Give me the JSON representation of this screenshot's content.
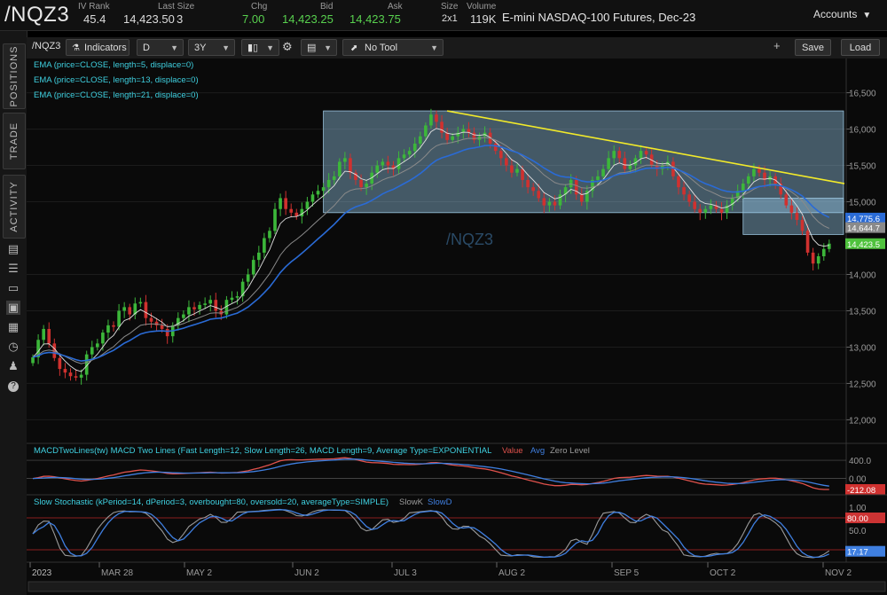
{
  "quote": {
    "symbol": "/NQZ3",
    "iv_rank_label": "IV Rank",
    "iv_rank": "45.4",
    "last_size_label": "Last Size",
    "last": "14,423.50",
    "size_inline": "3",
    "chg_label": "Chg",
    "chg": "7.00",
    "bid_label": "Bid",
    "bid": "14,423.25",
    "ask_label": "Ask",
    "ask": "14,423.75",
    "size_label": "Size",
    "size": "2x1",
    "volume_label": "Volume",
    "volume": "119K",
    "description": "E-mini NASDAQ-100 Futures, Dec-23",
    "accounts": "Accounts",
    "colors": {
      "up": "#58d04e"
    }
  },
  "sidebar": {
    "tabs": [
      "POSITIONS",
      "TRADE",
      "ACTIVITY"
    ],
    "icons": [
      "document-icon",
      "list-icon",
      "tv-icon",
      "chart-icon",
      "grid-icon",
      "history-icon",
      "people-icon",
      "help-icon"
    ]
  },
  "toolbar": {
    "symbol": "/NQZ3",
    "indicators": "Indicators",
    "aggregation": "D",
    "range": "3Y",
    "tool": "No Tool",
    "save": "Save",
    "load": "Load"
  },
  "chart_data": [
    {
      "type": "candlestick",
      "watermark": "/NQZ3",
      "studies": [
        "EMA (price=CLOSE, length=5, displace=0)",
        "EMA (price=CLOSE, length=13, displace=0)",
        "EMA (price=CLOSE, length=21, displace=0)"
      ],
      "y_ticks": [
        "16,500",
        "16,000",
        "15,500",
        "15,000",
        "14,000",
        "13,500",
        "13,000",
        "12,500",
        "12,000"
      ],
      "ylim": [
        11700,
        16800
      ],
      "price_tags": [
        {
          "text": "14,775.6",
          "value": 14775.6,
          "color": "#2a6bd6"
        },
        {
          "text": "14,644.7",
          "value": 14644.7,
          "color": "#8a8a8a"
        },
        {
          "text": "14,423.5",
          "value": 14423.5,
          "color": "#4fc23d"
        }
      ],
      "x_ticks": [
        "2023",
        "MAR 28",
        "MAY 2",
        "JUN 2",
        "JUL 3",
        "AUG 2",
        "SEP 5",
        "OCT 2",
        "NOV 2"
      ],
      "closes": [
        12860,
        13100,
        13250,
        13050,
        12850,
        12700,
        12650,
        12600,
        12580,
        12620,
        12900,
        13000,
        13050,
        13200,
        13300,
        13280,
        13500,
        13550,
        13450,
        13600,
        13620,
        13400,
        13350,
        13300,
        13250,
        13150,
        13300,
        13400,
        13450,
        13550,
        13520,
        13580,
        13600,
        13650,
        13500,
        13450,
        13650,
        13680,
        13700,
        13900,
        14000,
        14200,
        14300,
        14500,
        14600,
        14900,
        15050,
        14900,
        14850,
        14800,
        14900,
        15000,
        15100,
        15150,
        15200,
        15300,
        15350,
        15550,
        15600,
        15400,
        15300,
        15200,
        15250,
        15400,
        15500,
        15550,
        15500,
        15450,
        15600,
        15650,
        15700,
        15800,
        15900,
        16050,
        16200,
        16100,
        15950,
        15850,
        15900,
        15950,
        16000,
        15950,
        15850,
        15900,
        15950,
        15800,
        15700,
        15600,
        15500,
        15400,
        15450,
        15300,
        15200,
        15150,
        15050,
        14950,
        15000,
        14950,
        15100,
        15200,
        15300,
        15100,
        15000,
        15150,
        15300,
        15350,
        15450,
        15600,
        15700,
        15600,
        15450,
        15500,
        15600,
        15700,
        15650,
        15500,
        15450,
        15500,
        15550,
        15350,
        15200,
        15100,
        15000,
        14900,
        14850,
        14900,
        14950,
        14900,
        14850,
        14950,
        15050,
        15150,
        15250,
        15350,
        15450,
        15400,
        15300,
        15350,
        15250,
        15100,
        14950,
        14850,
        14750,
        14600,
        14300,
        14150,
        14250,
        14350,
        14423.5
      ],
      "range_boxes": [
        {
          "from_idx": 54,
          "to_idx": 186,
          "low": 14850,
          "high": 16250
        },
        {
          "from_idx": 132,
          "to_idx": 186,
          "low": 14550,
          "high": 15050
        }
      ],
      "trendline": {
        "from_idx": 77,
        "from_price": 16250,
        "to_idx": 186,
        "to_price": 15250
      }
    },
    {
      "type": "line",
      "title": "MACDTwoLines(tw) MACD Two Lines (Fast Length=12, Slow Length=26, MACD Length=9, Average Type=EXPONENTIAL",
      "legend": [
        {
          "name": "Value",
          "color": "#e0524c"
        },
        {
          "name": "Avg",
          "color": "#3f7fe0"
        },
        {
          "name": "Zero Level",
          "color": "#9a9a9a"
        }
      ],
      "y_ticks": [
        "400.0",
        "0.00"
      ],
      "ylim": [
        -320,
        460
      ],
      "last_value_tag": "-212.08"
    },
    {
      "type": "line",
      "title": "Slow Stochastic (kPeriod=14, dPeriod=3, overbought=80, oversold=20, averageType=SIMPLE)",
      "legend": [
        {
          "name": "SlowK",
          "color": "#9a9a9a"
        },
        {
          "name": "SlowD",
          "color": "#3f7fe0"
        }
      ],
      "y_ticks": [
        "1.00",
        "50.0"
      ],
      "ylim": [
        0,
        100
      ],
      "overbought": 80,
      "oversold": 20,
      "tags": [
        {
          "text": "80.00",
          "value": 80,
          "color": "#c33"
        },
        {
          "text": "17.17",
          "value": 17.17,
          "color": "#3f7fe0"
        }
      ]
    }
  ]
}
